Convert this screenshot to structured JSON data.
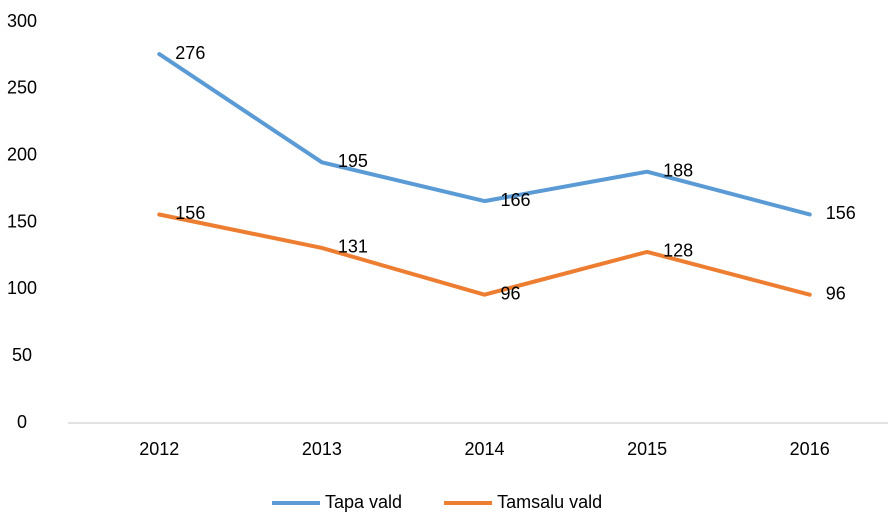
{
  "chart_data": {
    "type": "line",
    "categories": [
      "2012",
      "2013",
      "2014",
      "2015",
      "2016"
    ],
    "series": [
      {
        "name": "Tapa vald",
        "color": "#5b9bd5",
        "values": [
          276,
          195,
          166,
          188,
          156
        ]
      },
      {
        "name": "Tamsalu vald",
        "color": "#ed7d31",
        "values": [
          156,
          131,
          96,
          128,
          96
        ]
      }
    ],
    "ylim": [
      0,
      300
    ],
    "yticks": [
      0,
      50,
      100,
      150,
      200,
      250,
      300
    ],
    "grid": false,
    "legend": "bottom"
  }
}
